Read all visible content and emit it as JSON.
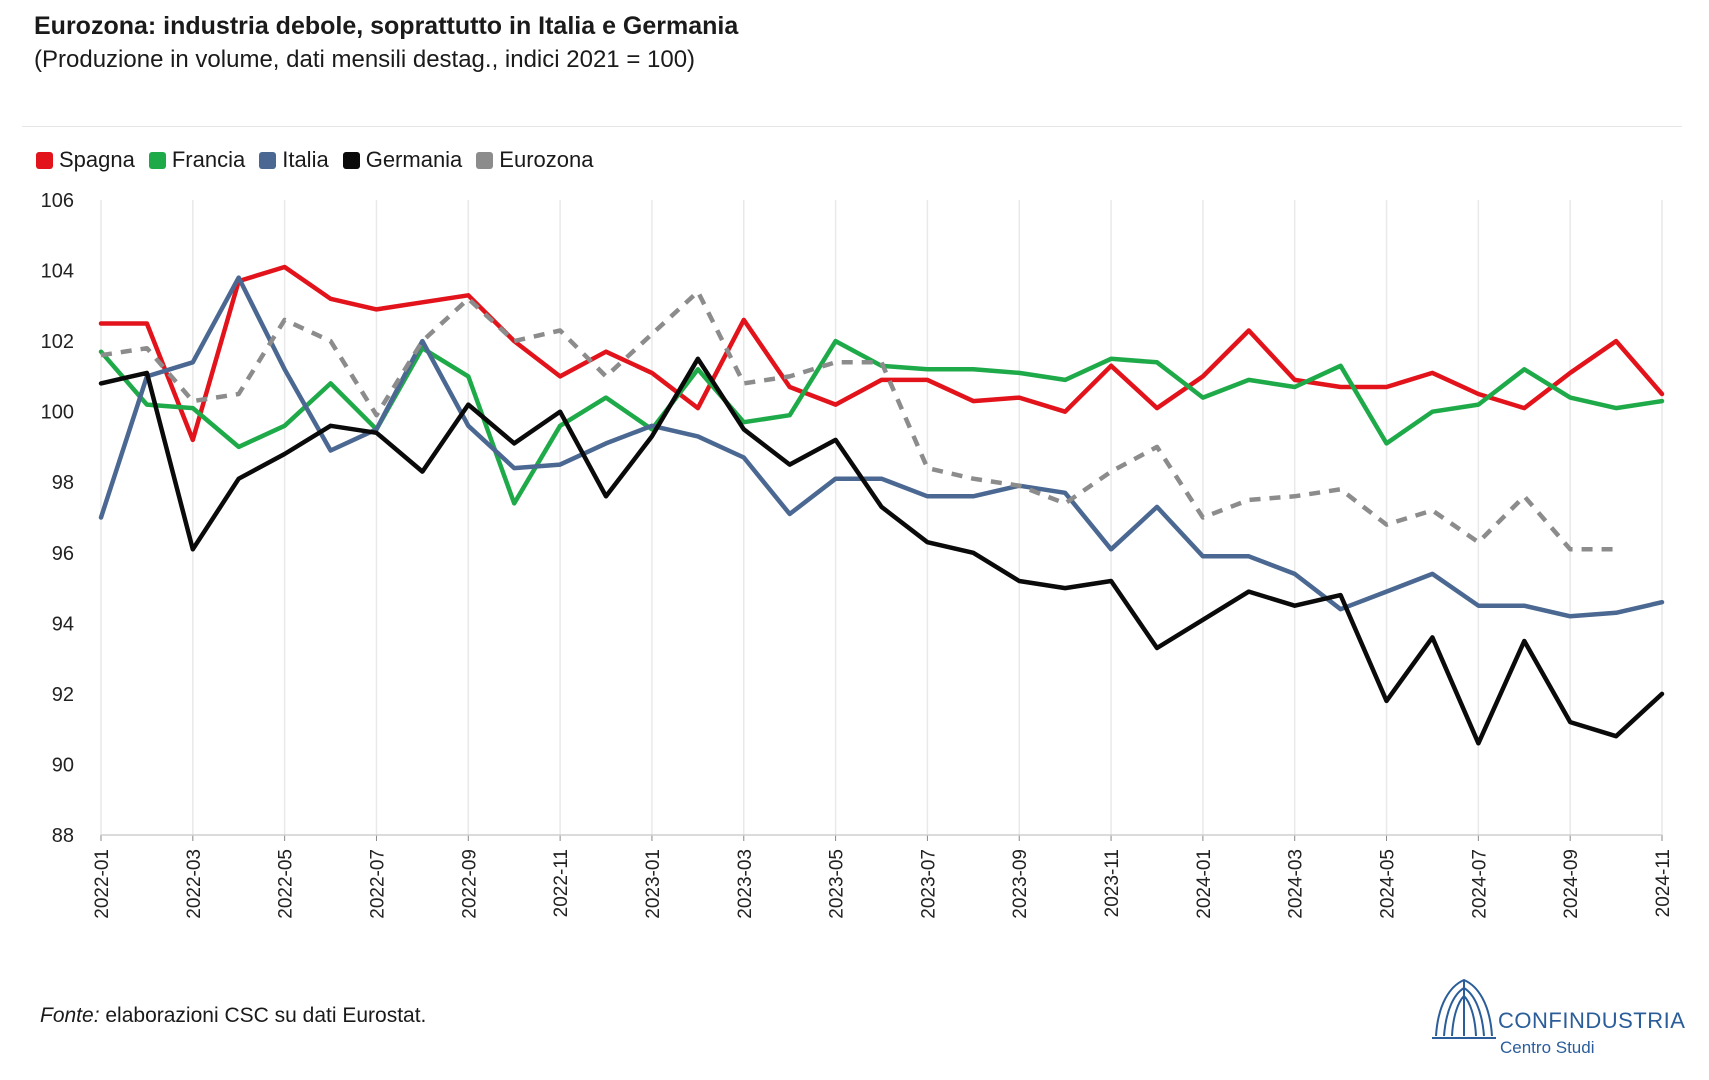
{
  "chart_data": {
    "type": "line",
    "title": "Eurozona: industria debole, soprattutto in Italia e Germania",
    "subtitle": "(Produzione in volume, dati mensili destag., indici 2021 = 100)",
    "xlabel": "",
    "ylabel": "",
    "ylim": [
      88,
      106
    ],
    "yticks": [
      "106",
      "104",
      "102",
      "100",
      "98",
      "96",
      "94",
      "92",
      "90",
      "88"
    ],
    "x": [
      "2022-01",
      "2022-02",
      "2022-03",
      "2022-04",
      "2022-05",
      "2022-06",
      "2022-07",
      "2022-08",
      "2022-09",
      "2022-10",
      "2022-11",
      "2022-12",
      "2023-01",
      "2023-02",
      "2023-03",
      "2023-04",
      "2023-05",
      "2023-06",
      "2023-07",
      "2023-08",
      "2023-09",
      "2023-10",
      "2023-11",
      "2023-12",
      "2024-01",
      "2024-02",
      "2024-03",
      "2024-04",
      "2024-05",
      "2024-06",
      "2024-07",
      "2024-08",
      "2024-09",
      "2024-10",
      "2024-11"
    ],
    "xticks": [
      "2022-01",
      "2022-03",
      "2022-05",
      "2022-07",
      "2022-09",
      "2022-11",
      "2023-01",
      "2023-03",
      "2023-05",
      "2023-07",
      "2023-09",
      "2023-11",
      "2024-01",
      "2024-03",
      "2024-05",
      "2024-07",
      "2024-09",
      "2024-11"
    ],
    "grid": true,
    "legend_position": "top-left",
    "series": [
      {
        "name": "Spagna",
        "color": "#e3131b",
        "dash": false,
        "values": [
          102.5,
          102.5,
          99.2,
          103.7,
          104.1,
          103.2,
          102.9,
          103.1,
          103.3,
          102.0,
          101.0,
          101.7,
          101.1,
          100.1,
          102.6,
          100.7,
          100.2,
          100.9,
          100.9,
          100.3,
          100.4,
          100.0,
          101.3,
          100.1,
          101.0,
          102.3,
          100.9,
          100.7,
          100.7,
          101.1,
          100.5,
          100.1,
          101.1,
          102.0,
          100.5
        ]
      },
      {
        "name": "Francia",
        "color": "#1faa4a",
        "dash": false,
        "values": [
          101.7,
          100.2,
          100.1,
          99.0,
          99.6,
          100.8,
          99.5,
          101.8,
          101.0,
          97.4,
          99.6,
          100.4,
          99.5,
          101.2,
          99.7,
          99.9,
          102.0,
          101.3,
          101.2,
          101.2,
          101.1,
          100.9,
          101.5,
          101.4,
          100.4,
          100.9,
          100.7,
          101.3,
          99.1,
          100.0,
          100.2,
          101.2,
          100.4,
          100.1,
          100.3
        ]
      },
      {
        "name": "Italia",
        "color": "#4a6891",
        "dash": false,
        "values": [
          97.0,
          101.0,
          101.4,
          103.8,
          101.2,
          98.9,
          99.5,
          102.0,
          99.6,
          98.4,
          98.5,
          99.1,
          99.6,
          99.3,
          98.7,
          97.1,
          98.1,
          98.1,
          97.6,
          97.6,
          97.9,
          97.7,
          96.1,
          97.3,
          95.9,
          95.9,
          95.4,
          94.4,
          94.9,
          95.4,
          94.5,
          94.5,
          94.2,
          94.3,
          94.6
        ]
      },
      {
        "name": "Germania",
        "color": "#0a0a0a",
        "dash": false,
        "values": [
          100.8,
          101.1,
          96.1,
          98.1,
          98.8,
          99.6,
          99.4,
          98.3,
          100.2,
          99.1,
          100.0,
          97.6,
          99.3,
          101.5,
          99.5,
          98.5,
          99.2,
          97.3,
          96.3,
          96.0,
          95.2,
          95.0,
          95.2,
          93.3,
          94.1,
          94.9,
          94.5,
          94.8,
          91.8,
          93.6,
          90.6,
          93.5,
          91.2,
          90.8,
          92.0
        ]
      },
      {
        "name": "Eurozona",
        "color": "#8c8c8c",
        "dash": true,
        "values": [
          101.6,
          101.8,
          100.3,
          100.5,
          102.6,
          102.0,
          99.9,
          102.0,
          103.2,
          102.0,
          102.3,
          101.0,
          102.2,
          103.4,
          100.8,
          101.0,
          101.4,
          101.4,
          98.4,
          98.1,
          97.9,
          97.4,
          98.3,
          99.0,
          97.0,
          97.5,
          97.6,
          97.8,
          96.8,
          97.2,
          96.3,
          97.6,
          96.1,
          96.1,
          null
        ]
      }
    ]
  },
  "footer": {
    "source_label": "Fonte:",
    "source_text": " elaborazioni CSC su dati Eurostat."
  },
  "logo": {
    "name": "CONFINDUSTRIA",
    "sub": "Centro Studi"
  }
}
